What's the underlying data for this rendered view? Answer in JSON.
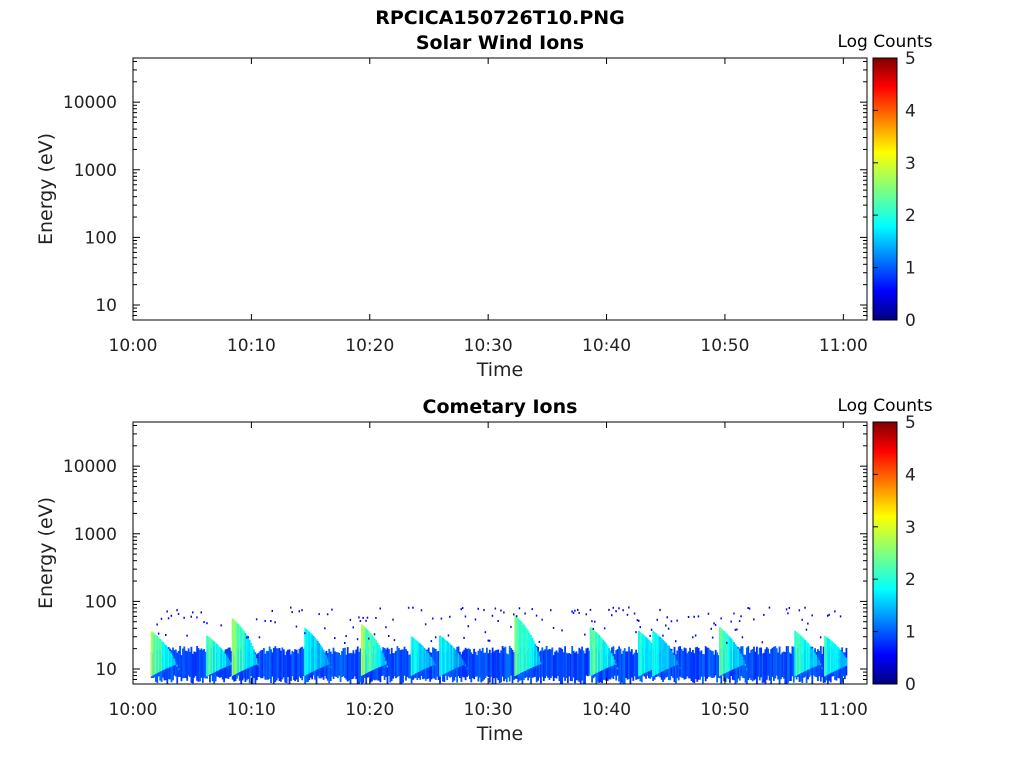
{
  "page_title": "RPCICA150726T10.PNG",
  "chart_data": [
    {
      "type": "heatmap",
      "title": "Solar Wind Ions",
      "xlabel": "Time",
      "ylabel": "Energy (eV)",
      "x_ticks": [
        "10:00",
        "10:10",
        "10:20",
        "10:30",
        "10:40",
        "10:50",
        "11:00"
      ],
      "x_range_minutes": [
        0,
        62
      ],
      "y_scale": "log",
      "y_ticks": [
        "10",
        "100",
        "1000",
        "10000"
      ],
      "y_range": [
        6,
        45000
      ],
      "colorbar": {
        "label": "Log Counts",
        "ticks": [
          "0",
          "1",
          "2",
          "3",
          "4",
          "5"
        ],
        "range": [
          0,
          5
        ],
        "colormap": "jet"
      },
      "bursts": []
    },
    {
      "type": "heatmap",
      "title": "Cometary Ions",
      "xlabel": "Time",
      "ylabel": "Energy (eV)",
      "x_ticks": [
        "10:00",
        "10:10",
        "10:20",
        "10:30",
        "10:40",
        "10:50",
        "11:00"
      ],
      "x_range_minutes": [
        0,
        62
      ],
      "y_scale": "log",
      "y_ticks": [
        "10",
        "100",
        "1000",
        "10000"
      ],
      "y_range": [
        6,
        45000
      ],
      "colorbar": {
        "label": "Log Counts",
        "ticks": [
          "0",
          "1",
          "2",
          "3",
          "4",
          "5"
        ],
        "range": [
          0,
          5
        ],
        "colormap": "jet"
      },
      "data_time_range_minutes": [
        1.5,
        60.2
      ],
      "background_energy_range_eV": [
        7,
        20
      ],
      "background_log_counts": 0.6,
      "bursts": [
        {
          "t_minutes": 1.6,
          "peak_energy_eV": 35,
          "peak_log_counts": 2.0
        },
        {
          "t_minutes": 6.3,
          "peak_energy_eV": 30,
          "peak_log_counts": 1.8
        },
        {
          "t_minutes": 8.4,
          "peak_energy_eV": 55,
          "peak_log_counts": 2.0
        },
        {
          "t_minutes": 14.5,
          "peak_energy_eV": 40,
          "peak_log_counts": 1.5
        },
        {
          "t_minutes": 19.3,
          "peak_energy_eV": 45,
          "peak_log_counts": 2.1
        },
        {
          "t_minutes": 23.5,
          "peak_energy_eV": 30,
          "peak_log_counts": 1.6
        },
        {
          "t_minutes": 26.0,
          "peak_energy_eV": 30,
          "peak_log_counts": 1.5
        },
        {
          "t_minutes": 32.3,
          "peak_energy_eV": 60,
          "peak_log_counts": 2.0
        },
        {
          "t_minutes": 38.7,
          "peak_energy_eV": 40,
          "peak_log_counts": 1.9
        },
        {
          "t_minutes": 42.8,
          "peak_energy_eV": 35,
          "peak_log_counts": 1.6
        },
        {
          "t_minutes": 44.0,
          "peak_energy_eV": 35,
          "peak_log_counts": 1.5
        },
        {
          "t_minutes": 49.6,
          "peak_energy_eV": 40,
          "peak_log_counts": 1.8
        },
        {
          "t_minutes": 56.0,
          "peak_energy_eV": 35,
          "peak_log_counts": 1.7
        },
        {
          "t_minutes": 58.5,
          "peak_energy_eV": 30,
          "peak_log_counts": 1.6
        }
      ]
    }
  ]
}
